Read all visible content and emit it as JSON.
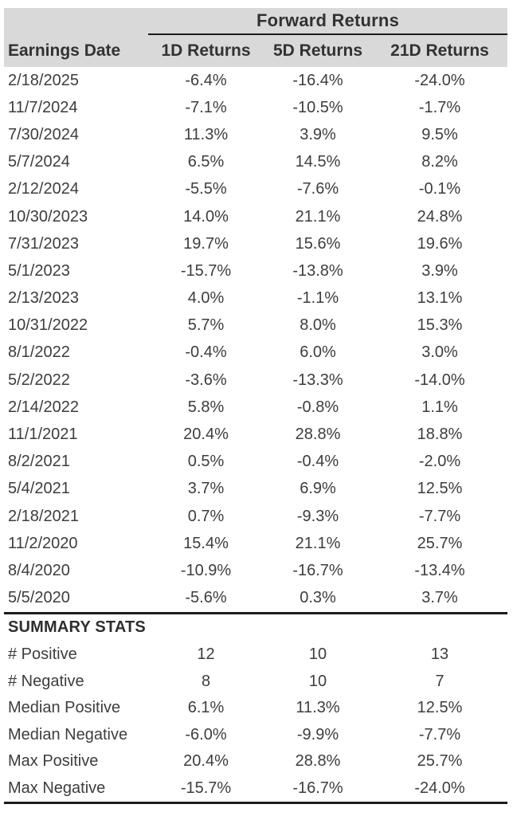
{
  "chart_data": {
    "type": "table",
    "title": "Forward Returns",
    "columns": [
      "Earnings Date",
      "1D Returns",
      "5D Returns",
      "21D Returns"
    ],
    "rows": [
      [
        "2/18/2025",
        "-6.4%",
        "-16.4%",
        "-24.0%"
      ],
      [
        "11/7/2024",
        "-7.1%",
        "-10.5%",
        "-1.7%"
      ],
      [
        "7/30/2024",
        "11.3%",
        "3.9%",
        "9.5%"
      ],
      [
        "5/7/2024",
        "6.5%",
        "14.5%",
        "8.2%"
      ],
      [
        "2/12/2024",
        "-5.5%",
        "-7.6%",
        "-0.1%"
      ],
      [
        "10/30/2023",
        "14.0%",
        "21.1%",
        "24.8%"
      ],
      [
        "7/31/2023",
        "19.7%",
        "15.6%",
        "19.6%"
      ],
      [
        "5/1/2023",
        "-15.7%",
        "-13.8%",
        "3.9%"
      ],
      [
        "2/13/2023",
        "4.0%",
        "-1.1%",
        "13.1%"
      ],
      [
        "10/31/2022",
        "5.7%",
        "8.0%",
        "15.3%"
      ],
      [
        "8/1/2022",
        "-0.4%",
        "6.0%",
        "3.0%"
      ],
      [
        "5/2/2022",
        "-3.6%",
        "-13.3%",
        "-14.0%"
      ],
      [
        "2/14/2022",
        "5.8%",
        "-0.8%",
        "1.1%"
      ],
      [
        "11/1/2021",
        "20.4%",
        "28.8%",
        "18.8%"
      ],
      [
        "8/2/2021",
        "0.5%",
        "-0.4%",
        "-2.0%"
      ],
      [
        "5/4/2021",
        "3.7%",
        "6.9%",
        "12.5%"
      ],
      [
        "2/18/2021",
        "0.7%",
        "-9.3%",
        "-7.7%"
      ],
      [
        "11/2/2020",
        "15.4%",
        "21.1%",
        "25.7%"
      ],
      [
        "8/4/2020",
        "-10.9%",
        "-16.7%",
        "-13.4%"
      ],
      [
        "5/5/2020",
        "-5.6%",
        "0.3%",
        "3.7%"
      ]
    ],
    "summary_title": "SUMMARY STATS",
    "summary_rows": [
      [
        "# Positive",
        "12",
        "10",
        "13"
      ],
      [
        "# Negative",
        "8",
        "10",
        "7"
      ],
      [
        "Median Positive",
        "6.1%",
        "11.3%",
        "12.5%"
      ],
      [
        "Median Negative",
        "-6.0%",
        "-9.9%",
        "-7.7%"
      ],
      [
        "Max Positive",
        "20.4%",
        "28.8%",
        "25.7%"
      ],
      [
        "Max Negative",
        "-15.7%",
        "-16.7%",
        "-24.0%"
      ]
    ],
    "layout": {
      "header_background": "#d9d9d9",
      "text_color": "#3d3d3d",
      "rule_color": "#1c1c1c",
      "value_alignment": "center",
      "label_alignment": "left"
    }
  }
}
